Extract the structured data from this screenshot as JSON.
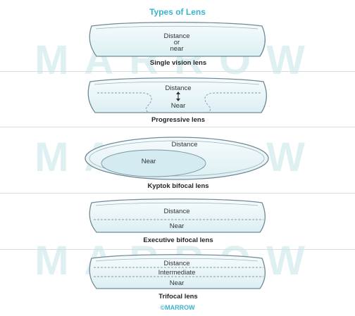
{
  "title": "Types of Lens",
  "watermark": "MARROW",
  "credit": "©MARROW",
  "colors": {
    "accent": "#3ab3cf",
    "lens_fill": "#e8f5f8",
    "lens_stroke": "#6f8a96",
    "watermark": "#dff0f3"
  },
  "lenses": [
    {
      "caption": "Single vision lens",
      "labels": [
        "Distance",
        "or",
        "near"
      ]
    },
    {
      "caption": "Progressive lens",
      "labels": [
        "Distance",
        "Near"
      ],
      "icon": "double-arrow-icon"
    },
    {
      "caption": "Kyptok bifocal lens",
      "labels": [
        "Distance",
        "Near"
      ]
    },
    {
      "caption": "Executive bifocal lens",
      "labels": [
        "Distance",
        "Near"
      ]
    },
    {
      "caption": "Trifocal lens",
      "labels": [
        "Distance",
        "Intermediate",
        "Near"
      ]
    }
  ]
}
